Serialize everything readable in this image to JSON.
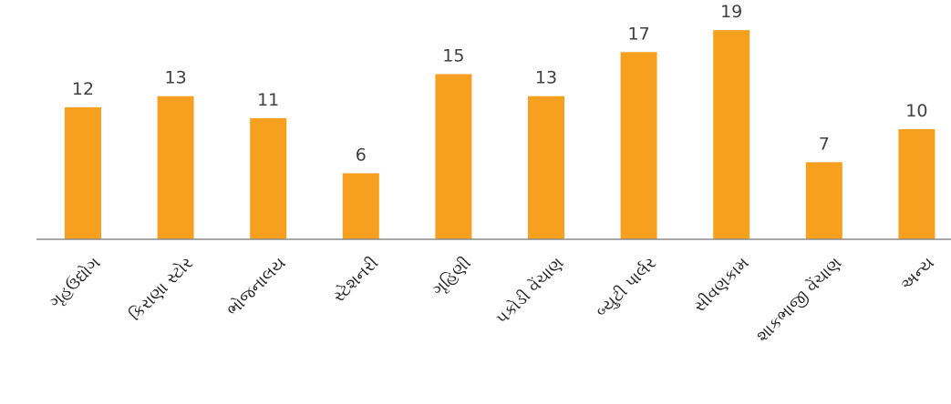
{
  "chart_data": {
    "type": "bar",
    "categories": [
      "ગૃહઉદ્યોગ",
      "કિરાણા સ્ટોર",
      "ભોજનાલય",
      "સ્ટેશનરી",
      "ગૃહિણી",
      "પકોડી વેંચાણ",
      "બ્યુટી પાર્લર",
      "સીવણકામ",
      "શાકભાજી વેંચાણ",
      "અન્ય"
    ],
    "values": [
      12,
      13,
      11,
      6,
      15,
      13,
      17,
      19,
      7,
      10
    ],
    "ylim": [
      0,
      20
    ],
    "title": "",
    "xlabel": "",
    "ylabel": "",
    "grid": false,
    "colors": {
      "bar": "#F7A01F",
      "axis": "#8C8C8C",
      "text": "#404040"
    }
  }
}
